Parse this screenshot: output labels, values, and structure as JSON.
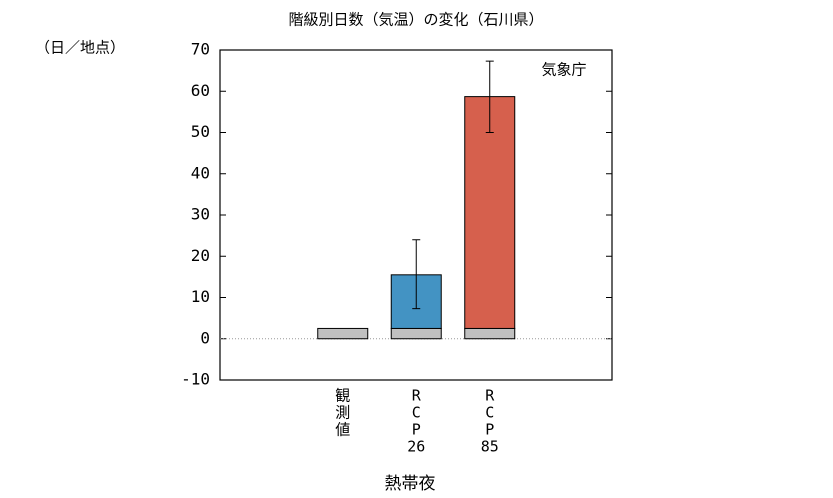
{
  "chart_data": {
    "type": "stacked-bar",
    "title": "階級別日数（気温）の変化（石川県）",
    "y_label": "（日／地点）",
    "x_label": "熱帯夜",
    "annotation": "気象庁",
    "categories": [
      [
        "観",
        "測",
        "値"
      ],
      [
        "R",
        "C",
        "P",
        "26"
      ],
      [
        "R",
        "C",
        "P",
        "85"
      ]
    ],
    "series": [
      {
        "colors": [
          "#c0c0c0",
          "#c0c0c0",
          "#c0c0c0"
        ],
        "values": [
          2.5,
          2.5,
          2.5
        ]
      },
      {
        "colors": [
          null,
          "#4393c3",
          "#d6604d"
        ],
        "values": [
          null,
          13,
          56.2
        ]
      }
    ],
    "error_bars": [
      null,
      {
        "low": 7.3,
        "high": 24
      },
      {
        "low": 50,
        "high": 67.3
      }
    ],
    "ylim": [
      -10,
      70
    ],
    "yticks": [
      -10,
      0,
      10,
      20,
      30,
      40,
      50,
      60,
      70
    ],
    "zero_line": true
  }
}
